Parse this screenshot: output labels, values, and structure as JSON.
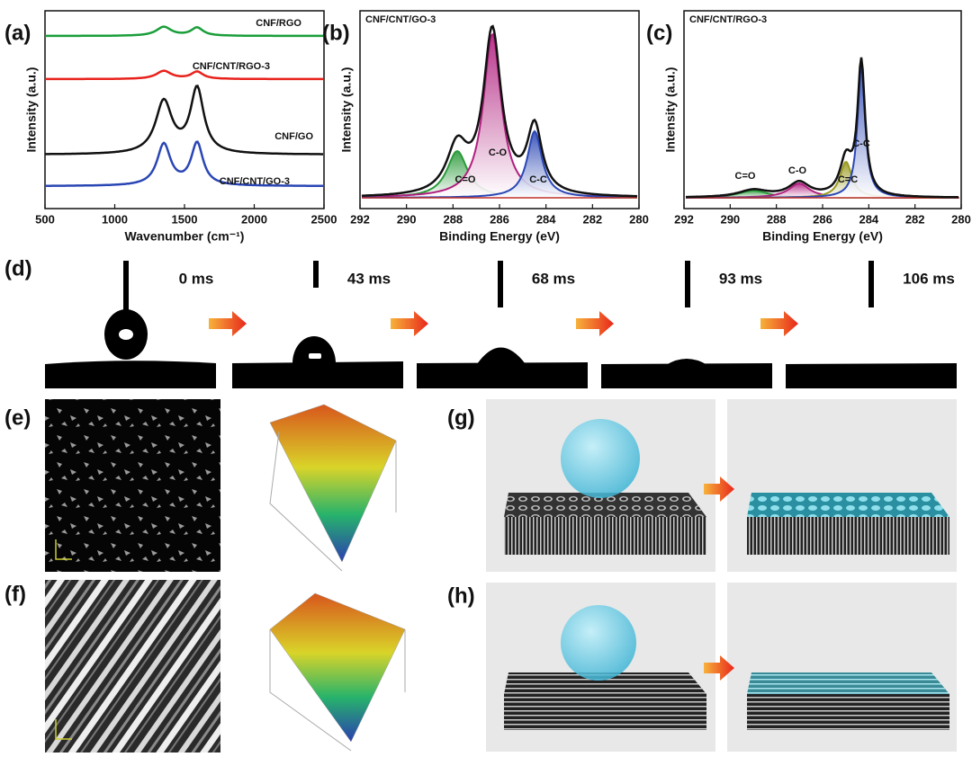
{
  "panel_labels": [
    "(a)",
    "(b)",
    "(c)",
    "(d)",
    "(e)",
    "(f)",
    "(g)",
    "(h)"
  ],
  "chart_data": [
    {
      "type": "line",
      "xlabel": "Wavenumber (cm⁻¹)",
      "ylabel": "Intensity (a.u.)",
      "xlim": [
        500,
        2500
      ],
      "xticks": [
        500,
        1000,
        1500,
        2000,
        2500
      ],
      "series": [
        {
          "name": "CNF/RGO",
          "color": "#1a9e3a"
        },
        {
          "name": "CNF/CNT/RGO-3",
          "color": "#e8221b"
        },
        {
          "name": "CNF/GO",
          "color": "#111111"
        },
        {
          "name": "CNF/CNT/GO-3",
          "color": "#2a46b4"
        }
      ]
    },
    {
      "type": "line",
      "title": "CNF/CNT/GO-3",
      "xlabel": "Binding Energy (eV)",
      "ylabel": "Intensity (a.u.)",
      "xlim": [
        292,
        280
      ],
      "xticks": [
        292,
        290,
        288,
        286,
        284,
        282,
        280
      ],
      "annotations": [
        "C=O",
        "C-O",
        "C-C"
      ]
    },
    {
      "type": "line",
      "title": "CNF/CNT/RGO-3",
      "xlabel": "Binding Energy (eV)",
      "ylabel": "Intensity (a.u.)",
      "xlim": [
        292,
        280
      ],
      "xticks": [
        292,
        290,
        288,
        286,
        284,
        282,
        280
      ],
      "annotations": [
        "C=O",
        "C-O",
        "C=C",
        "C-C"
      ]
    }
  ],
  "droplet": {
    "times": [
      "0 ms",
      "43 ms",
      "68 ms",
      "93 ms",
      "106 ms"
    ]
  }
}
